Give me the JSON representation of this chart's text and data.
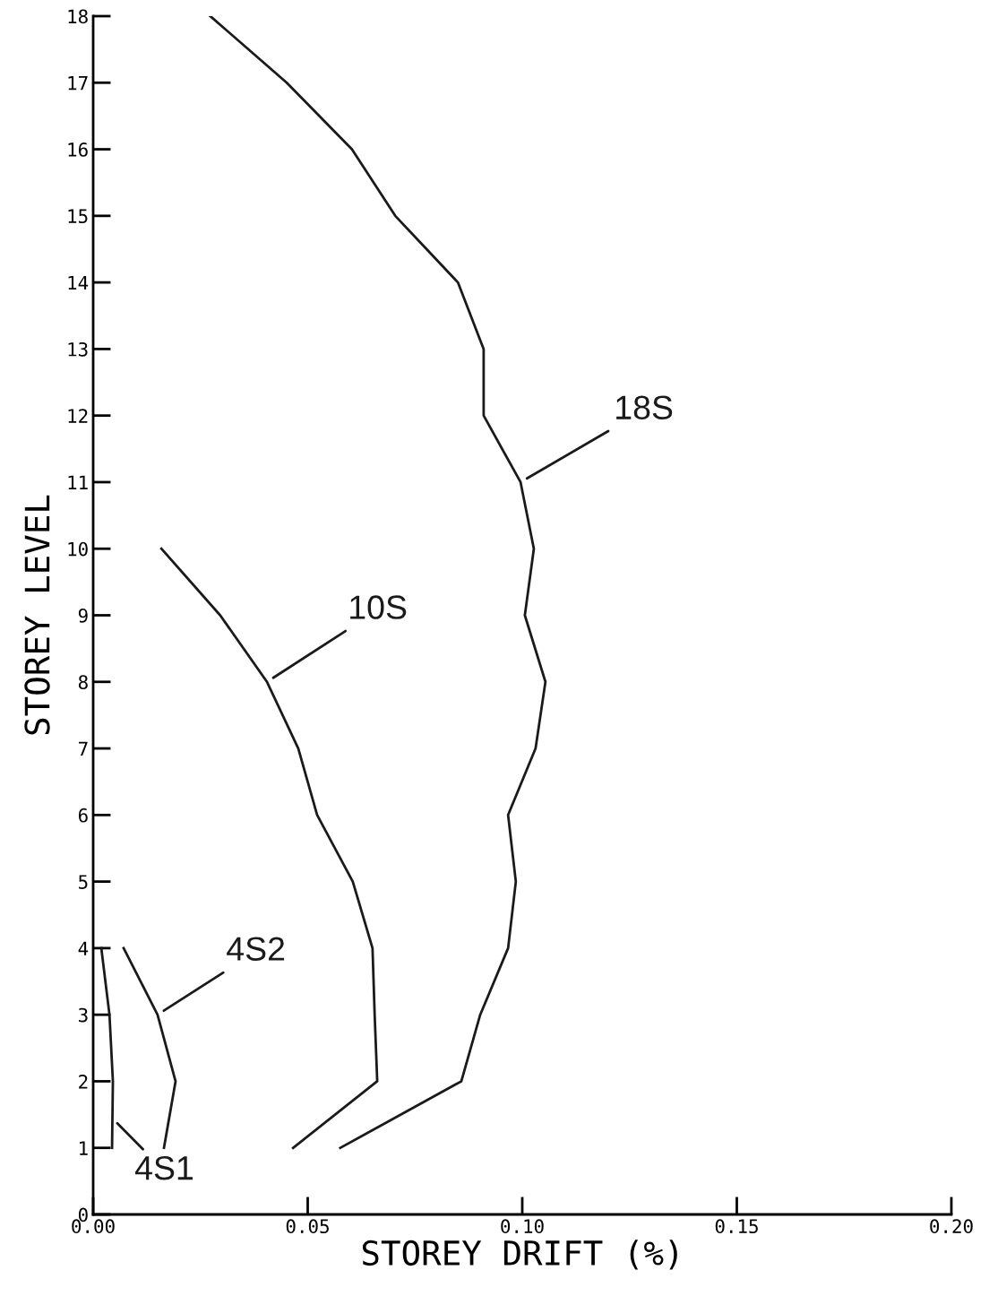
{
  "chart_data": {
    "type": "line",
    "xlabel": "STOREY DRIFT (%)",
    "ylabel": "STOREY LEVEL",
    "xlim": [
      0,
      0.2
    ],
    "ylim": [
      0,
      18
    ],
    "xticks": [
      {
        "value": 0,
        "label": "0.00"
      },
      {
        "value": 0.05,
        "label": "0.05"
      },
      {
        "value": 0.1,
        "label": "0.10"
      },
      {
        "value": 0.15,
        "label": "0.15"
      },
      {
        "value": 0.2,
        "label": "0.20"
      }
    ],
    "yticks": [
      0,
      1,
      2,
      3,
      4,
      5,
      6,
      7,
      8,
      9,
      10,
      11,
      12,
      13,
      14,
      15,
      16,
      17,
      18
    ],
    "grid": false,
    "legend": false,
    "marker": "none",
    "line_style": "solid",
    "series": [
      {
        "name": "18S",
        "color": "#1a1a1a",
        "x": [
          0.0273,
          0.0451,
          0.0603,
          0.0704,
          0.085,
          0.091,
          0.091,
          0.0996,
          0.1027,
          0.1006,
          0.1054,
          0.1031,
          0.0967,
          0.0985,
          0.0967,
          0.0902,
          0.0858,
          0.0576
        ],
        "values": [
          18,
          17,
          16,
          15,
          14,
          13,
          12,
          11,
          10,
          9,
          8,
          7,
          6,
          5,
          4,
          3,
          2,
          1
        ]
      },
      {
        "name": "10S",
        "color": "#1a1a1a",
        "x": [
          0.0159,
          0.0296,
          0.0405,
          0.0478,
          0.0522,
          0.0605,
          0.0651,
          0.0656,
          0.0662,
          0.0466
        ],
        "values": [
          10,
          9,
          8,
          7,
          6,
          5,
          4,
          3,
          2,
          1
        ]
      },
      {
        "name": "4S2",
        "color": "#1a1a1a",
        "x": [
          0.0071,
          0.015,
          0.0192,
          0.0165
        ],
        "values": [
          4,
          3,
          2,
          1
        ]
      },
      {
        "name": "4S1",
        "color": "#1a1a1a",
        "x": [
          0.0019,
          0.0038,
          0.0046,
          0.0044
        ],
        "values": [
          4,
          3,
          2,
          1
        ]
      }
    ]
  }
}
